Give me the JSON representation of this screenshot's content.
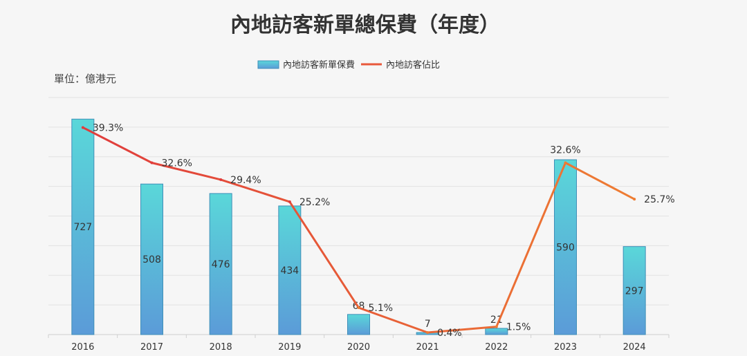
{
  "chart_data": {
    "type": "bar",
    "title": "內地訪客新單總保費（年度）",
    "unit_label": "單位：億港元",
    "categories": [
      "2016",
      "2017",
      "2018",
      "2019",
      "2020",
      "2021",
      "2022",
      "2023",
      "2024"
    ],
    "series": [
      {
        "name": "內地訪客新單保費",
        "type": "bar",
        "values": [
          727,
          508,
          476,
          434,
          68,
          7,
          21,
          590,
          297
        ],
        "labels": [
          "727",
          "508",
          "476",
          "434",
          "68",
          "7",
          "21",
          "590",
          "297"
        ]
      },
      {
        "name": "內地訪客佔比",
        "type": "line",
        "values": [
          39.3,
          32.6,
          29.4,
          25.2,
          5.1,
          0.4,
          1.5,
          32.6,
          25.7
        ],
        "labels": [
          "39.3%",
          "32.6%",
          "29.4%",
          "25.2%",
          "5.1%",
          "0.4%",
          "1.5%",
          "32.6%",
          "25.7%"
        ]
      }
    ],
    "ylim_bar": [
      0,
      800
    ],
    "ylim_line": [
      0,
      45
    ],
    "grid": true,
    "legend_position": "top-center",
    "colors": {
      "bar_top": "#5ad7d9",
      "bar_bottom": "#5b9bd8",
      "bar_stroke": "#3f8fb8",
      "line_red": "#e03c3c",
      "line_orange": "#ee7d33",
      "grid": "#e2e2e2"
    }
  }
}
